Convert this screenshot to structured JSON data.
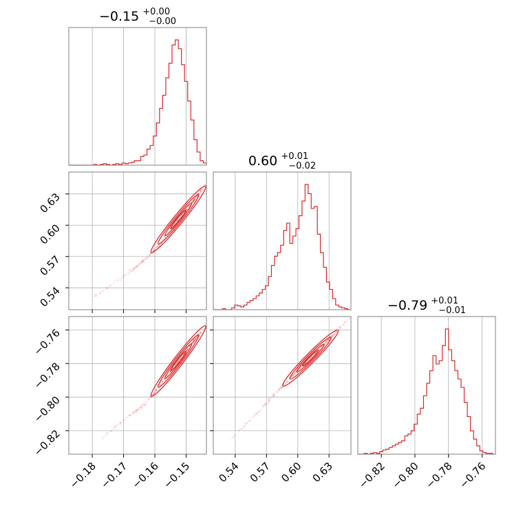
{
  "chart_data": {
    "type": "corner",
    "color": "#d62728",
    "grid": true,
    "parameters": [
      {
        "median": "−0.15",
        "plus": "+0.00",
        "minus": "−0.00",
        "range": [
          -0.1875,
          -0.1435
        ],
        "ticks": [
          -0.18,
          -0.17,
          -0.16,
          -0.15
        ],
        "tick_labels": [
          "−0.18",
          "−0.17",
          "−0.16",
          "−0.15"
        ]
      },
      {
        "median": "0.60",
        "plus": "+0.01",
        "minus": "−0.02",
        "range": [
          0.519,
          0.651
        ],
        "ticks": [
          0.54,
          0.57,
          0.6,
          0.63
        ],
        "tick_labels": [
          "0.54",
          "0.57",
          "0.60",
          "0.63"
        ]
      },
      {
        "median": "−0.79",
        "plus": "+0.01",
        "minus": "−0.01",
        "range": [
          -0.834,
          -0.752
        ],
        "ticks": [
          -0.82,
          -0.8,
          -0.78,
          -0.76
        ],
        "tick_labels": [
          "−0.82",
          "−0.80",
          "−0.78",
          "−0.76"
        ]
      }
    ],
    "histograms": [
      {
        "values": [
          0,
          0,
          0,
          0,
          0,
          0,
          0,
          0,
          1,
          0,
          1,
          2,
          1,
          0,
          1,
          2,
          1,
          3,
          2,
          3,
          4,
          6,
          6,
          12,
          14,
          22,
          27,
          40,
          58,
          78,
          96,
          120,
          140,
          165,
          172,
          160,
          138,
          115,
          88,
          62,
          35,
          18,
          6,
          3
        ]
      },
      {
        "values": [
          0,
          0,
          0,
          1,
          0,
          0,
          2,
          5,
          4,
          3,
          5,
          8,
          10,
          12,
          15,
          18,
          22,
          26,
          36,
          48,
          58,
          62,
          70,
          86,
          94,
          72,
          80,
          88,
          102,
          118,
          136,
          126,
          110,
          112,
          82,
          62,
          46,
          30,
          22,
          12,
          5,
          3,
          2,
          1,
          0
        ]
      },
      {
        "values": [
          0,
          0,
          1,
          0,
          1,
          2,
          1,
          3,
          5,
          6,
          8,
          10,
          12,
          14,
          16,
          22,
          24,
          28,
          36,
          48,
          55,
          70,
          85,
          100,
          118,
          108,
          112,
          130,
          150,
          125,
          112,
          100,
          90,
          80,
          62,
          45,
          28,
          18,
          10,
          4,
          2,
          1,
          1,
          0
        ]
      }
    ],
    "pair_relations": {
      "p1_vs_p0": {
        "p0": [
          -0.18,
          -0.17,
          -0.163,
          -0.158,
          -0.153,
          -0.149,
          -0.1455
        ],
        "p1": [
          0.53,
          0.551,
          0.567,
          0.583,
          0.603,
          0.618,
          0.632
        ]
      },
      "p2_vs_p0": {
        "p0": [
          -0.18,
          -0.17,
          -0.163,
          -0.158,
          -0.153,
          -0.149,
          -0.1455
        ],
        "p2": [
          -0.829,
          -0.814,
          -0.804,
          -0.792,
          -0.78,
          -0.77,
          -0.762
        ]
      },
      "p2_vs_p1": {
        "p1": [
          0.53,
          0.56,
          0.58,
          0.6,
          0.62,
          0.64
        ],
        "p2": [
          -0.829,
          -0.81,
          -0.797,
          -0.784,
          -0.772,
          -0.759
        ]
      }
    }
  }
}
